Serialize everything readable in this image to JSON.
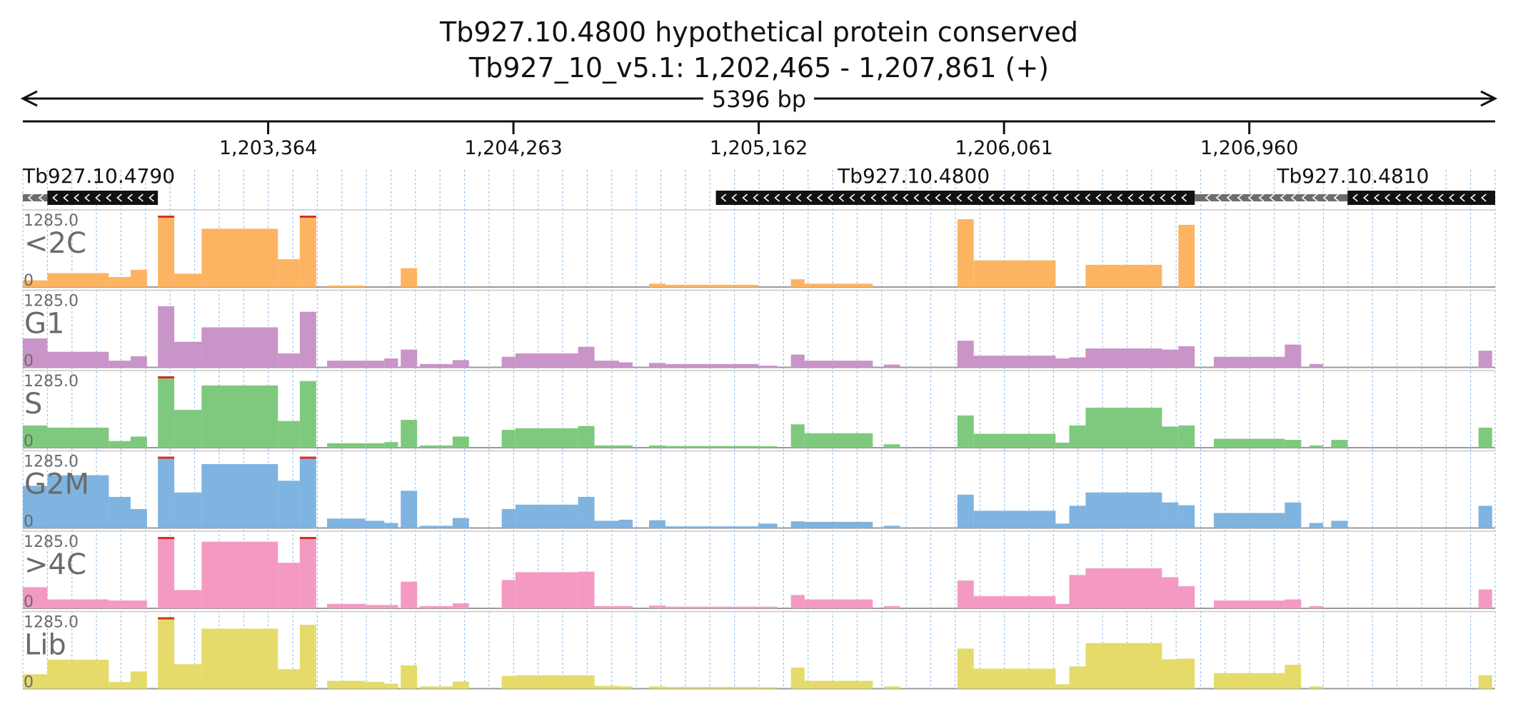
{
  "chart_data": {
    "type": "area",
    "title": "Tb927.10.4800  hypothetical protein  conserved",
    "subtitle": "Tb927_10_v5.1: 1,202,465 - 1,207,861 (+)",
    "span_label": "5396 bp",
    "region": {
      "start": 1202465,
      "end": 1207861
    },
    "ticks": [
      {
        "pos": 1203364,
        "label": "1,203,364"
      },
      {
        "pos": 1204263,
        "label": "1,204,263"
      },
      {
        "pos": 1205162,
        "label": "1,205,162"
      },
      {
        "pos": 1206061,
        "label": "1,206,061"
      },
      {
        "pos": 1206960,
        "label": "1,206,960"
      }
    ],
    "genes": [
      {
        "name": "Tb927.10.4790",
        "start": 1202465,
        "end": 1202960,
        "utr_end": 1202555,
        "strand": "-",
        "label_pos": 1202465,
        "label_anchor": "start"
      },
      {
        "name": "Tb927.10.4800",
        "start": 1205005,
        "end": 1206760,
        "utr_end": 1206790,
        "strand": "-",
        "label_pos": 1205730,
        "label_anchor": "middle"
      },
      {
        "name": "Tb927.10.4810",
        "start": 1207320,
        "end": 1207861,
        "utr_start": 1206780,
        "strand": "-",
        "label_pos": 1207340,
        "label_anchor": "middle"
      }
    ],
    "scale": {
      "max": "1285.0",
      "min": "0"
    },
    "tracks": [
      {
        "name": "<2C",
        "color": "#fdb462"
      },
      {
        "name": "G1",
        "color": "#c994c7"
      },
      {
        "name": "S",
        "color": "#7fc97f"
      },
      {
        "name": "G2M",
        "color": "#7fb3e0"
      },
      {
        "name": ">4C",
        "color": "#f49ac2"
      },
      {
        "name": "Lib",
        "color": "#e4db6a"
      }
    ],
    "segments": [
      {
        "s": 1202465,
        "e": 1202555,
        "v": [
          120,
          520,
          400,
          760,
          380,
          260
        ]
      },
      {
        "s": 1202555,
        "e": 1202780,
        "v": [
          250,
          280,
          360,
          950,
          160,
          520
        ]
      },
      {
        "s": 1202780,
        "e": 1202860,
        "v": [
          180,
          120,
          120,
          560,
          140,
          120
        ]
      },
      {
        "s": 1202860,
        "e": 1202920,
        "v": [
          310,
          200,
          200,
          340,
          140,
          310
        ]
      },
      {
        "s": 1202960,
        "e": 1203020,
        "v": [
          1285,
          1100,
          1285,
          1285,
          1285,
          1285
        ]
      },
      {
        "s": 1203020,
        "e": 1203120,
        "v": [
          240,
          460,
          680,
          640,
          330,
          440
        ]
      },
      {
        "s": 1203120,
        "e": 1203400,
        "v": [
          1050,
          720,
          1120,
          1150,
          1200,
          1080
        ]
      },
      {
        "s": 1203400,
        "e": 1203480,
        "v": [
          500,
          250,
          480,
          850,
          820,
          350
        ]
      },
      {
        "s": 1203480,
        "e": 1203540,
        "v": [
          1285,
          1000,
          1200,
          1285,
          1285,
          1150
        ]
      },
      {
        "s": 1203580,
        "e": 1203720,
        "v": [
          15,
          120,
          80,
          170,
          80,
          140
        ]
      },
      {
        "s": 1203720,
        "e": 1203790,
        "v": [
          0,
          120,
          80,
          130,
          60,
          120
        ]
      },
      {
        "s": 1203790,
        "e": 1203840,
        "v": [
          0,
          160,
          100,
          90,
          60,
          90
        ]
      },
      {
        "s": 1203850,
        "e": 1203910,
        "v": [
          340,
          320,
          500,
          670,
          480,
          420
        ]
      },
      {
        "s": 1203920,
        "e": 1204040,
        "v": [
          0,
          60,
          40,
          40,
          40,
          40
        ]
      },
      {
        "s": 1204040,
        "e": 1204100,
        "v": [
          0,
          130,
          200,
          180,
          90,
          130
        ]
      },
      {
        "s": 1204220,
        "e": 1204270,
        "v": [
          0,
          190,
          320,
          340,
          510,
          230
        ]
      },
      {
        "s": 1204270,
        "e": 1204500,
        "v": [
          0,
          250,
          350,
          420,
          650,
          240
        ]
      },
      {
        "s": 1204500,
        "e": 1204560,
        "v": [
          0,
          370,
          390,
          560,
          660,
          240
        ]
      },
      {
        "s": 1204560,
        "e": 1204650,
        "v": [
          0,
          120,
          40,
          130,
          40,
          50
        ]
      },
      {
        "s": 1204650,
        "e": 1204700,
        "v": [
          0,
          90,
          40,
          150,
          40,
          40
        ]
      },
      {
        "s": 1204760,
        "e": 1204820,
        "v": [
          60,
          80,
          40,
          140,
          50,
          40
        ]
      },
      {
        "s": 1204820,
        "e": 1205160,
        "v": [
          40,
          60,
          30,
          30,
          30,
          30
        ]
      },
      {
        "s": 1205160,
        "e": 1205230,
        "v": [
          0,
          30,
          20,
          80,
          30,
          20
        ]
      },
      {
        "s": 1205280,
        "e": 1205330,
        "v": [
          140,
          230,
          420,
          120,
          240,
          380
        ]
      },
      {
        "s": 1205330,
        "e": 1205580,
        "v": [
          60,
          120,
          260,
          110,
          160,
          140
        ]
      },
      {
        "s": 1205620,
        "e": 1205680,
        "v": [
          0,
          50,
          60,
          40,
          40,
          40
        ]
      },
      {
        "s": 1205890,
        "e": 1205950,
        "v": [
          1220,
          480,
          580,
          600,
          500,
          720
        ]
      },
      {
        "s": 1205950,
        "e": 1206250,
        "v": [
          480,
          210,
          250,
          310,
          220,
          360
        ]
      },
      {
        "s": 1206250,
        "e": 1206300,
        "v": [
          0,
          160,
          90,
          80,
          80,
          80
        ]
      },
      {
        "s": 1206300,
        "e": 1206360,
        "v": [
          0,
          180,
          400,
          400,
          600,
          400
        ]
      },
      {
        "s": 1206360,
        "e": 1206640,
        "v": [
          400,
          340,
          720,
          640,
          720,
          820
        ]
      },
      {
        "s": 1206640,
        "e": 1206700,
        "v": [
          0,
          320,
          380,
          460,
          560,
          530
        ]
      },
      {
        "s": 1206700,
        "e": 1206760,
        "v": [
          1120,
          380,
          400,
          410,
          400,
          540
        ]
      },
      {
        "s": 1206830,
        "e": 1207090,
        "v": [
          0,
          190,
          160,
          270,
          140,
          280
        ]
      },
      {
        "s": 1207090,
        "e": 1207150,
        "v": [
          0,
          410,
          140,
          460,
          160,
          430
        ]
      },
      {
        "s": 1207180,
        "e": 1207230,
        "v": [
          0,
          60,
          40,
          90,
          40,
          40
        ]
      },
      {
        "s": 1207260,
        "e": 1207320,
        "v": [
          0,
          0,
          140,
          130,
          0,
          0
        ]
      },
      {
        "s": 1207800,
        "e": 1207850,
        "v": [
          0,
          300,
          360,
          400,
          340,
          240
        ]
      }
    ]
  }
}
